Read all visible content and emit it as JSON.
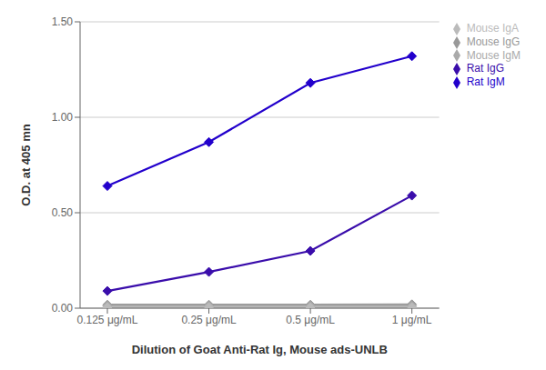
{
  "chart_data": {
    "type": "line",
    "xlabel": "Dilution of Goat Anti-Rat Ig, Mouse ads-UNLB",
    "ylabel": "O.D. at 405 mn",
    "categories": [
      "0.125 μg/mL",
      "0.25 μg/mL",
      "0.5 μg/mL",
      "1 μg/mL"
    ],
    "series": [
      {
        "name": "Rat IgG",
        "color": "#3a0dab",
        "marker": "diamond",
        "values": [
          0.09,
          0.19,
          0.3,
          0.59
        ]
      },
      {
        "name": "Rat IgM",
        "color": "#2200cc",
        "marker": "diamond",
        "values": [
          0.64,
          0.87,
          1.18,
          1.32
        ]
      },
      {
        "name": "Mouse IgG",
        "color": "#999999",
        "marker": "diamond",
        "values": [
          0.018,
          0.018,
          0.018,
          0.02
        ]
      },
      {
        "name": "Mouse IgM",
        "color": "#aaaaaa",
        "marker": "diamond",
        "values": [
          0.012,
          0.012,
          0.012,
          0.012
        ]
      },
      {
        "name": "Mouse IgA",
        "color": "#bbbbbb",
        "marker": "diamond",
        "values": [
          0.005,
          0.005,
          0.005,
          0.005
        ]
      }
    ],
    "ylim": [
      0.0,
      1.5
    ],
    "yticks": [
      {
        "value": 0.0,
        "label": "0.00"
      },
      {
        "value": 0.5,
        "label": "0.50"
      },
      {
        "value": 1.0,
        "label": "1.00"
      },
      {
        "value": 1.5,
        "label": "1.50"
      }
    ],
    "grid": true,
    "legend": "right"
  }
}
